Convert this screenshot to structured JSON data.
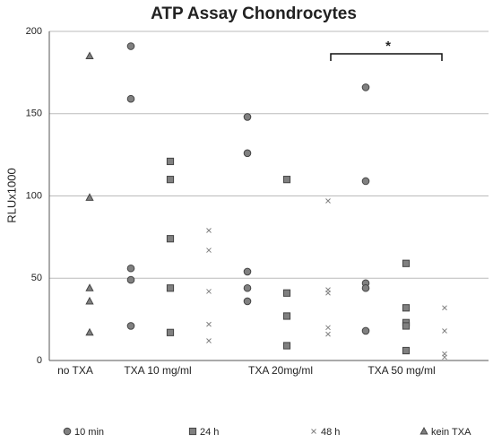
{
  "chart_data": {
    "type": "scatter",
    "title": "ATP Assay Chondrocytes",
    "ylabel": "RLUx1000",
    "categories": [
      "no TXA",
      "TXA 10 mg/ml",
      "TXA 20mg/ml",
      "TXA 50 mg/ml"
    ],
    "ylim": [
      0,
      200
    ],
    "yticks": [
      0,
      50,
      100,
      150,
      200
    ],
    "grid": true,
    "legend": "bottom",
    "annotation": "*",
    "series": [
      {
        "name": "10 min",
        "marker": "circle",
        "color": "#808080",
        "values": [
          [],
          [
            191,
            159,
            56,
            49,
            21
          ],
          [
            148,
            126,
            54,
            44,
            36
          ],
          [
            166,
            109,
            47,
            44,
            18
          ]
        ]
      },
      {
        "name": "24 h",
        "marker": "square",
        "color": "#808080",
        "values": [
          [],
          [
            121,
            110,
            74,
            44,
            17
          ],
          [
            110,
            41,
            27,
            9
          ],
          [
            59,
            32,
            23,
            21,
            6
          ]
        ]
      },
      {
        "name": "48 h",
        "marker": "cross",
        "color": "#808080",
        "values": [
          [],
          [
            79,
            67,
            42,
            22,
            12
          ],
          [
            97,
            43,
            41,
            20,
            16
          ],
          [
            32,
            18,
            4,
            2
          ]
        ]
      },
      {
        "name": "kein TXA",
        "marker": "triangle",
        "color": "#808080",
        "values": [
          [
            185,
            99,
            44,
            36,
            17
          ],
          [],
          [],
          []
        ]
      }
    ]
  }
}
